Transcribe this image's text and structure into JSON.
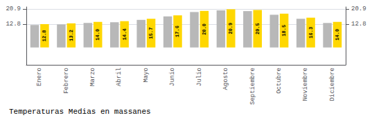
{
  "chart_data": {
    "type": "bar",
    "title": "Temperaturas Medias en massanes",
    "categories": [
      "Enero",
      "Febrero",
      "Marzo",
      "Abril",
      "Mayo",
      "Junio",
      "Julio",
      "Agosto",
      "Septiembre",
      "Octubre",
      "Noviembre",
      "Diciembre"
    ],
    "series": [
      {
        "color": "#B8B8B8",
        "values": [
          12.3,
          12.6,
          13.4,
          13.8,
          15.1,
          17.0,
          19.4,
          20.3,
          19.9,
          17.9,
          15.7,
          13.4
        ]
      },
      {
        "color": "#FFD700",
        "values": [
          12.8,
          13.2,
          14.0,
          14.4,
          15.7,
          17.6,
          20.0,
          20.9,
          20.5,
          18.5,
          16.3,
          14.0
        ],
        "data_labels": true,
        "value_labels": [
          "12.8",
          "13.2",
          "14.0",
          "14.4",
          "15.7",
          "17.6",
          "20.0",
          "20.9",
          "20.5",
          "18.5",
          "16.3",
          "14.0"
        ]
      }
    ],
    "ylim": [
      -9.5,
      22.2
    ],
    "yticks": [
      12.8,
      20.9
    ],
    "y2lim": [
      -9.5,
      22.2
    ],
    "y2ticks": [
      12.8,
      20.9
    ],
    "grid": true
  }
}
